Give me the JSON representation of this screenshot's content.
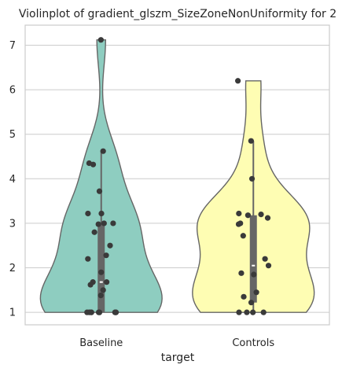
{
  "chart_data": {
    "type": "violin",
    "title": "Violinplot of gradient_glszm_SizeZoneNonUniformity for 2",
    "xlabel": "target",
    "ylabel": "",
    "ylim": [
      0.72,
      7.45
    ],
    "yticks": [
      1,
      2,
      3,
      4,
      5,
      6,
      7
    ],
    "grid": true,
    "categories": [
      "Baseline",
      "Controls"
    ],
    "colors": [
      "#8ecdc0",
      "#fefdb3"
    ],
    "series": [
      {
        "category": "Baseline",
        "min": 1.0,
        "q1": 1.0,
        "median": 1.68,
        "q3": 3.02,
        "max": 7.12,
        "whisker_low": 1.0,
        "whisker_high": 4.62,
        "points": [
          7.12,
          4.62,
          4.35,
          4.32,
          3.72,
          3.22,
          3.22,
          3.0,
          3.0,
          2.98,
          2.8,
          2.5,
          2.28,
          2.2,
          1.9,
          1.68,
          1.68,
          1.62,
          1.5,
          1.38,
          1.0,
          1.0,
          1.0,
          1.0,
          1.0,
          1.0,
          1.0,
          1.0,
          1.0
        ]
      },
      {
        "category": "Controls",
        "min": 1.0,
        "q1": 1.22,
        "median": 2.05,
        "q3": 3.18,
        "max": 6.2,
        "whisker_low": 1.0,
        "whisker_high": 4.85,
        "points": [
          6.2,
          4.85,
          4.0,
          3.22,
          3.2,
          3.18,
          3.12,
          3.0,
          2.98,
          2.72,
          2.2,
          2.05,
          1.88,
          1.85,
          1.45,
          1.35,
          1.22,
          1.0,
          1.0,
          1.0,
          1.0
        ]
      }
    ]
  }
}
